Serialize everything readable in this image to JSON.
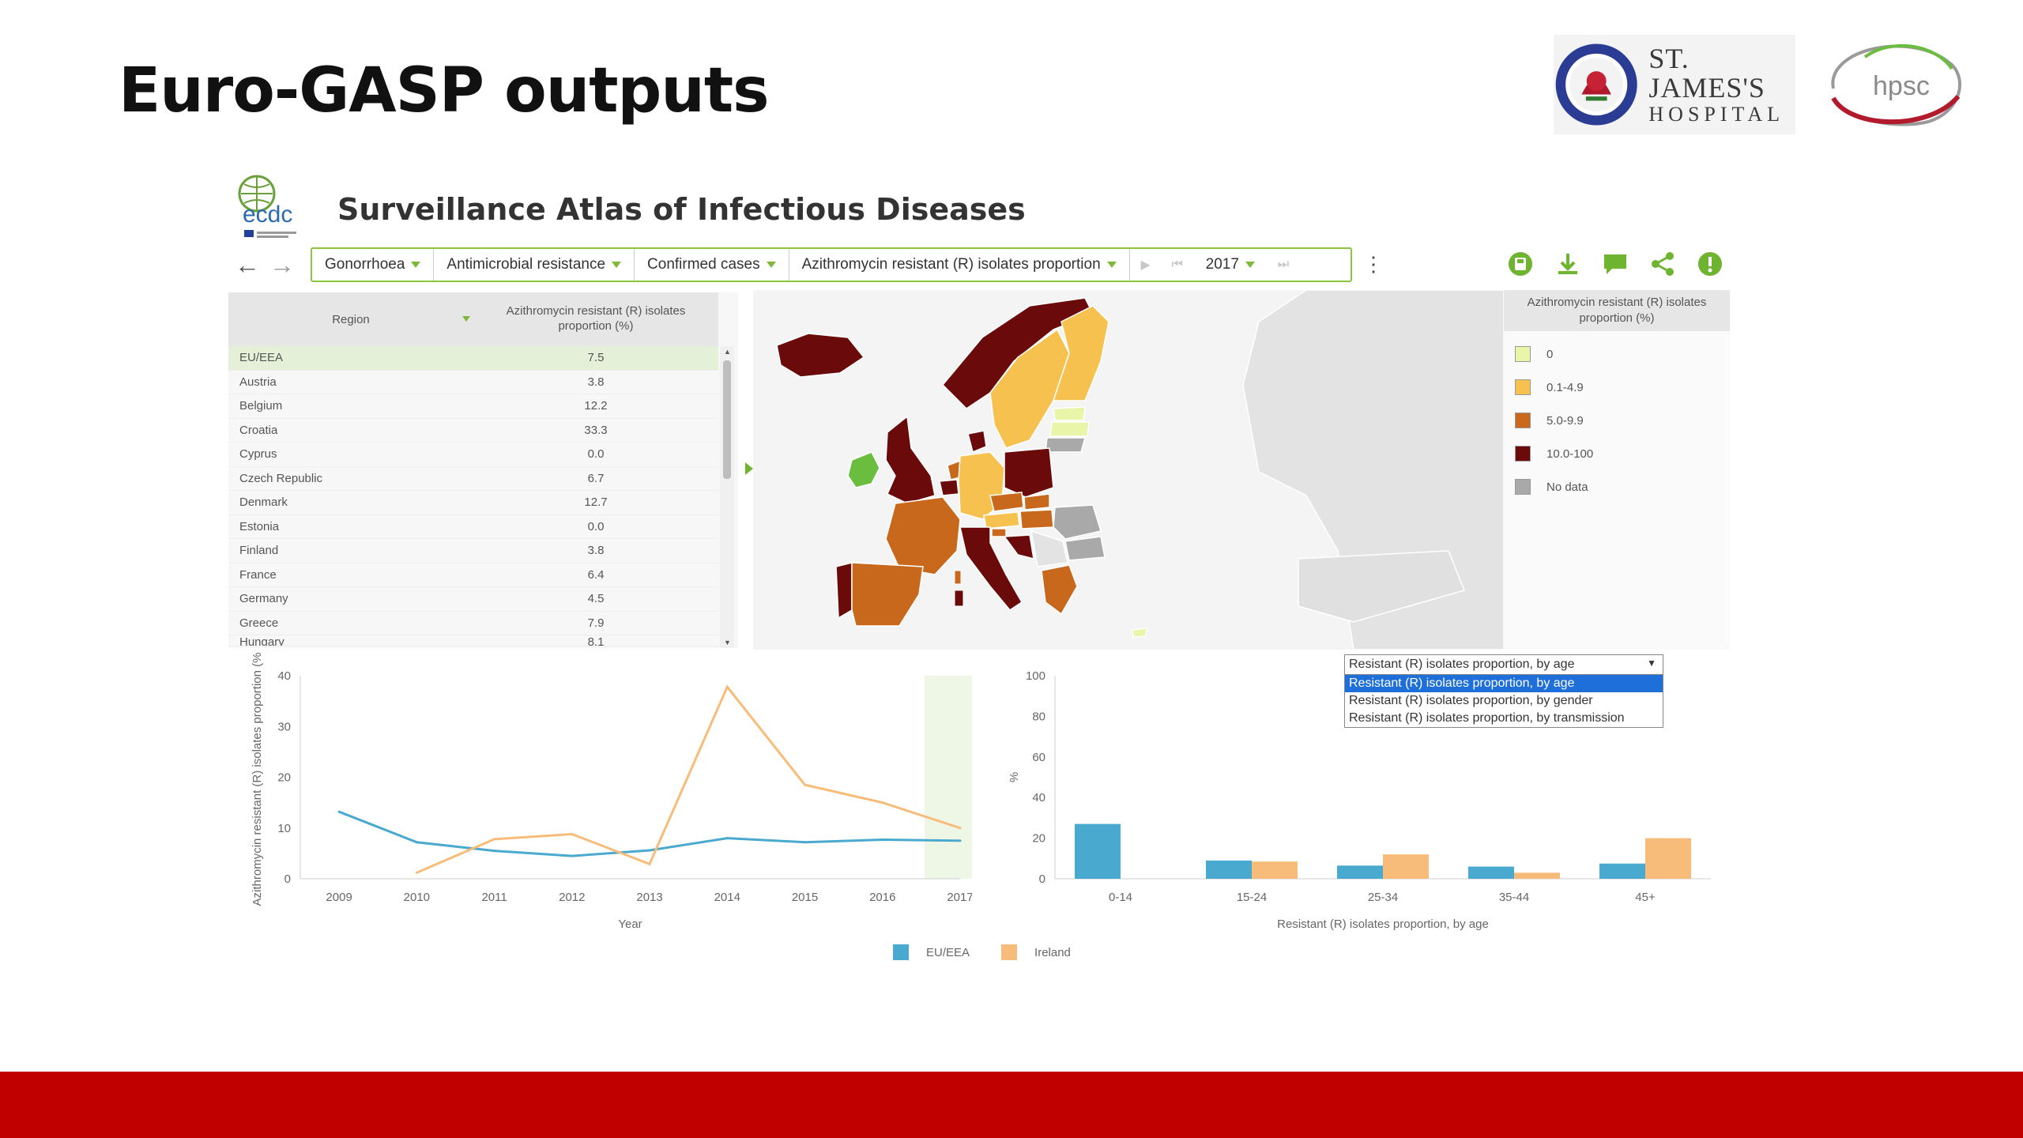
{
  "slide": {
    "title": "Euro-GASP outputs",
    "logos": {
      "sjh_line1": "ST. JAMES'S",
      "sjh_line2": "HOSPITAL",
      "hpsc": "hpsc",
      "ecdc": "ecdc"
    },
    "footer_color": "#c00000"
  },
  "atlas": {
    "title": "Surveillance Atlas of Infectious Diseases",
    "filters": [
      {
        "label": "Gonorrhoea"
      },
      {
        "label": "Antimicrobial resistance"
      },
      {
        "label": "Confirmed cases"
      },
      {
        "label": "Azithromycin resistant (R) isolates proportion"
      }
    ],
    "year": "2017",
    "tool_icons": [
      "save-icon",
      "download-icon",
      "comment-icon",
      "share-icon",
      "info-icon"
    ],
    "accent_color": "#6fb430"
  },
  "table": {
    "col_region": "Region",
    "col_value": "Azithromycin resistant (R) isolates proportion (%)",
    "rows": [
      {
        "region": "EU/EEA",
        "value": "7.5"
      },
      {
        "region": "Austria",
        "value": "3.8"
      },
      {
        "region": "Belgium",
        "value": "12.2"
      },
      {
        "region": "Croatia",
        "value": "33.3"
      },
      {
        "region": "Cyprus",
        "value": "0.0"
      },
      {
        "region": "Czech Republic",
        "value": "6.7"
      },
      {
        "region": "Denmark",
        "value": "12.7"
      },
      {
        "region": "Estonia",
        "value": "0.0"
      },
      {
        "region": "Finland",
        "value": "3.8"
      },
      {
        "region": "France",
        "value": "6.4"
      },
      {
        "region": "Germany",
        "value": "4.5"
      },
      {
        "region": "Greece",
        "value": "7.9"
      },
      {
        "region": "Hungary",
        "value": "8.1"
      }
    ]
  },
  "map_legend": {
    "title": "Azithromycin resistant (R) isolates proportion (%)",
    "items": [
      {
        "label": "0",
        "color": "#e9f5a8"
      },
      {
        "label": "0.1-4.9",
        "color": "#f7c150"
      },
      {
        "label": "5.0-9.9",
        "color": "#c8681c"
      },
      {
        "label": "10.0-100",
        "color": "#6b0a0a"
      },
      {
        "label": "No data",
        "color": "#a9a9a9"
      }
    ]
  },
  "bar_selector": {
    "selected": "Resistant (R) isolates proportion, by age",
    "options": [
      "Resistant (R) isolates proportion, by age",
      "Resistant (R) isolates proportion, by gender",
      "Resistant (R) isolates proportion, by transmission"
    ]
  },
  "chart_data": [
    {
      "type": "line",
      "x": [
        2009,
        2010,
        2011,
        2012,
        2013,
        2014,
        2015,
        2016,
        2017
      ],
      "series": [
        {
          "name": "EU/EEA",
          "color": "#4aa9cf",
          "values": [
            13.2,
            7.2,
            5.5,
            4.5,
            5.6,
            8.0,
            7.2,
            7.7,
            7.5
          ]
        },
        {
          "name": "Ireland",
          "color": "#f8bc7a",
          "values": [
            null,
            1.2,
            7.8,
            8.8,
            2.9,
            37.8,
            18.5,
            15.0,
            10.0
          ]
        }
      ],
      "xlabel": "Year",
      "ylabel": "Azithromycin resistant (R) isolates proportion (%)",
      "ylim": [
        0,
        40
      ],
      "yticks": [
        0,
        10,
        20,
        30,
        40
      ],
      "highlight_x": 2017
    },
    {
      "type": "bar",
      "categories": [
        "0-14",
        "15-24",
        "25-34",
        "35-44",
        "45+"
      ],
      "series": [
        {
          "name": "EU/EEA",
          "color": "#4aa9cf",
          "values": [
            27,
            9,
            6.5,
            6,
            7.5
          ]
        },
        {
          "name": "Ireland",
          "color": "#f8bc7a",
          "values": [
            null,
            8.5,
            12,
            3,
            20
          ]
        }
      ],
      "xlabel": "Resistant (R) isolates proportion, by age",
      "ylabel": "%",
      "ylim": [
        0,
        100
      ],
      "yticks": [
        0,
        20,
        40,
        60,
        80,
        100
      ]
    }
  ],
  "chart_legend": [
    {
      "name": "EU/EEA",
      "color": "#4aa9cf"
    },
    {
      "name": "Ireland",
      "color": "#f8bc7a"
    }
  ]
}
